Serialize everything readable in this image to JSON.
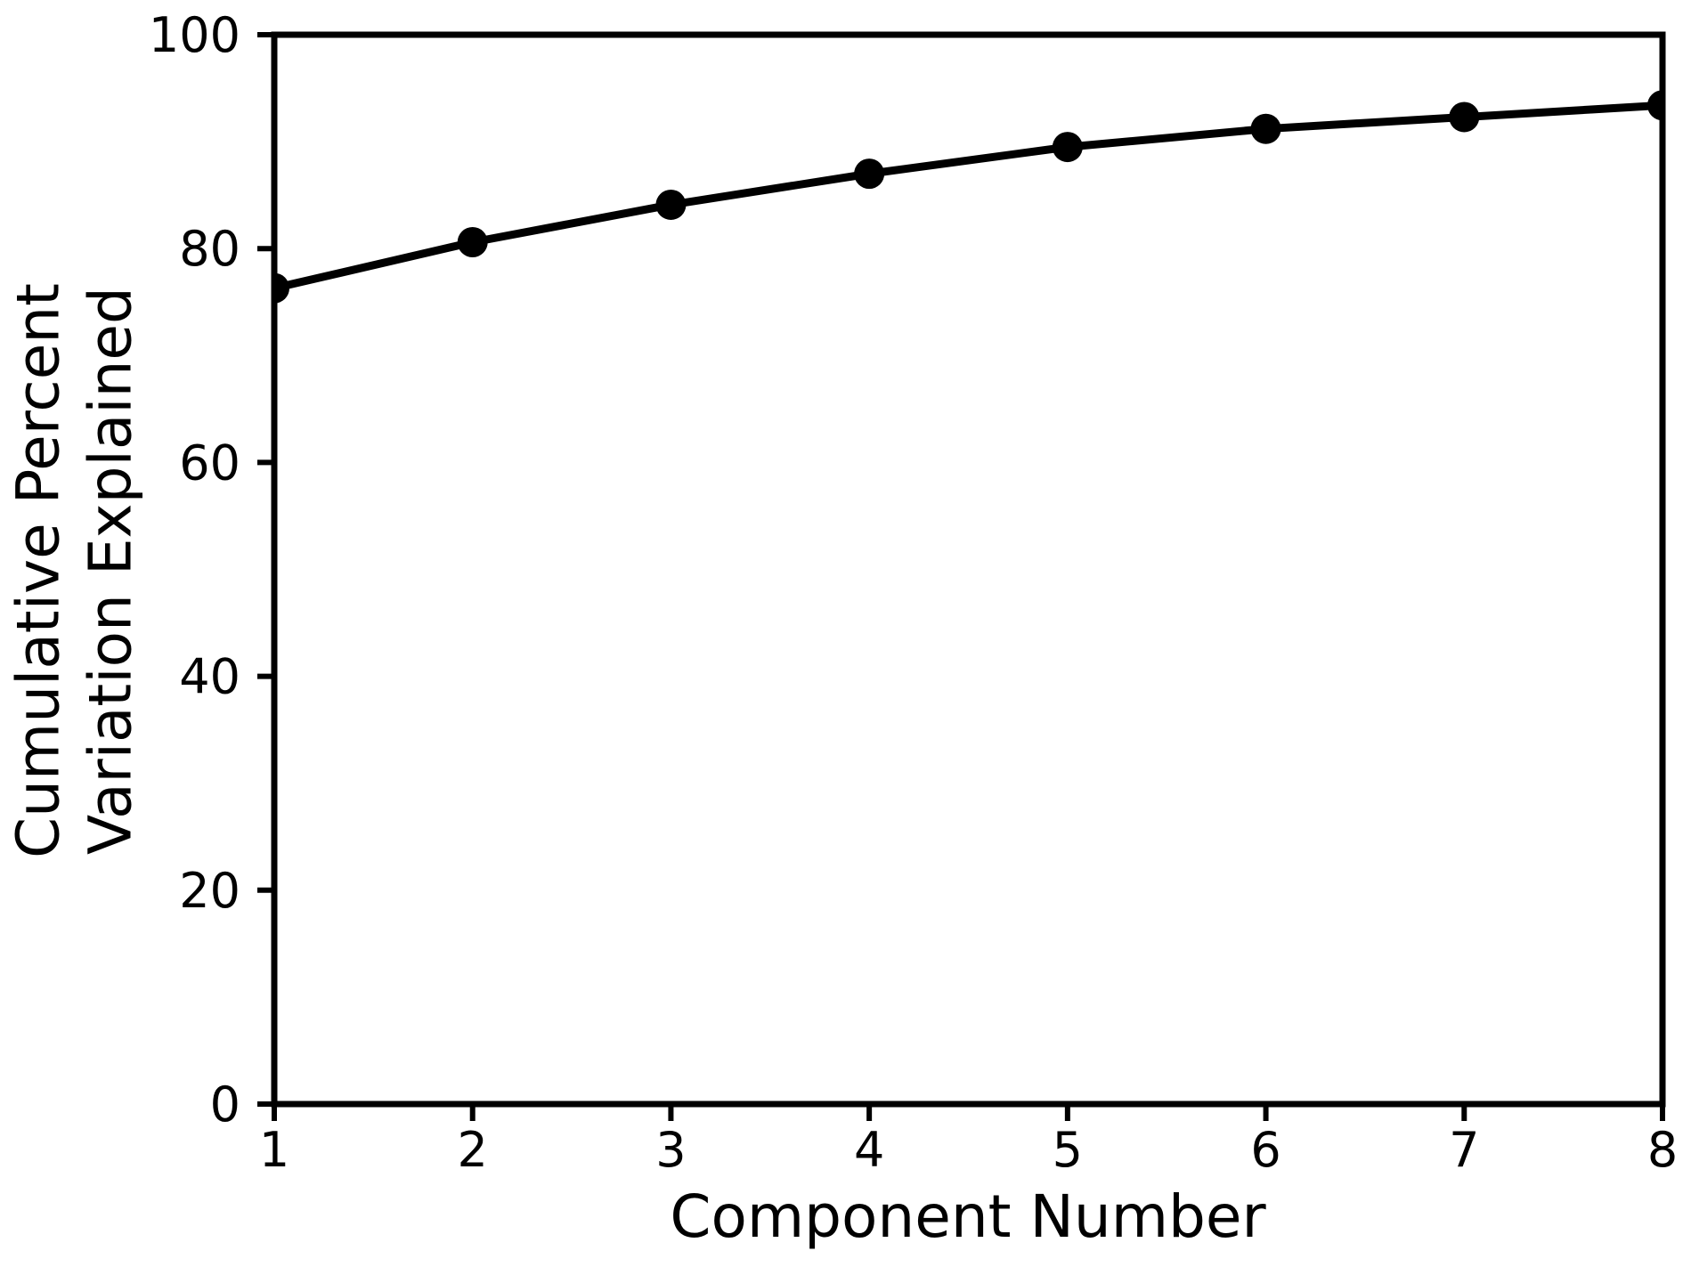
{
  "figure": {
    "background_color": "#ffffff",
    "foreground_color": "#000000"
  },
  "chart_data": {
    "type": "line",
    "title": "",
    "xlabel": "Component Number",
    "ylabel": "Cumulative Percent Variation Explained",
    "ylabel_lines": [
      "Cumulative Percent",
      "Variation Explained"
    ],
    "x": [
      1,
      2,
      3,
      4,
      5,
      6,
      7,
      8
    ],
    "series": [
      {
        "name": "Cumulative percent variation explained",
        "values": [
          76.3,
          80.6,
          84.1,
          87.0,
          89.5,
          91.2,
          92.3,
          93.4
        ]
      }
    ],
    "xlim": [
      1,
      8
    ],
    "ylim": [
      0,
      100
    ],
    "x_ticks": [
      1,
      2,
      3,
      4,
      5,
      6,
      7,
      8
    ],
    "y_ticks": [
      0,
      20,
      40,
      60,
      80,
      100
    ],
    "grid": false,
    "legend": "none",
    "line_color": "#000000",
    "marker": "filled-circle",
    "marker_color": "#000000",
    "axis_color": "#000000",
    "background_color": "#ffffff"
  }
}
